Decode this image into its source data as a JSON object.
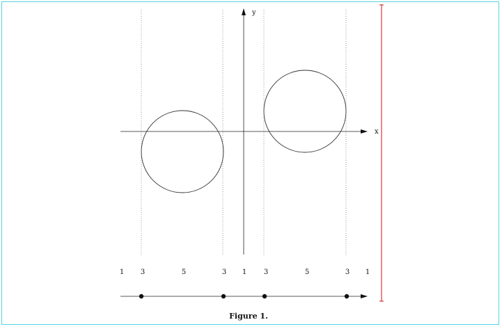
{
  "diagram": {
    "axis_labels": {
      "x": "x",
      "y": "y"
    },
    "region_labels": [
      "1",
      "3",
      "5",
      "3",
      "1",
      "3",
      "5",
      "3",
      "1"
    ],
    "caption": "Figure 1."
  },
  "colors": {
    "frame": "#4fd6df",
    "limit_line": "#cc1111",
    "ink": "#222222",
    "guides": "#999999"
  }
}
